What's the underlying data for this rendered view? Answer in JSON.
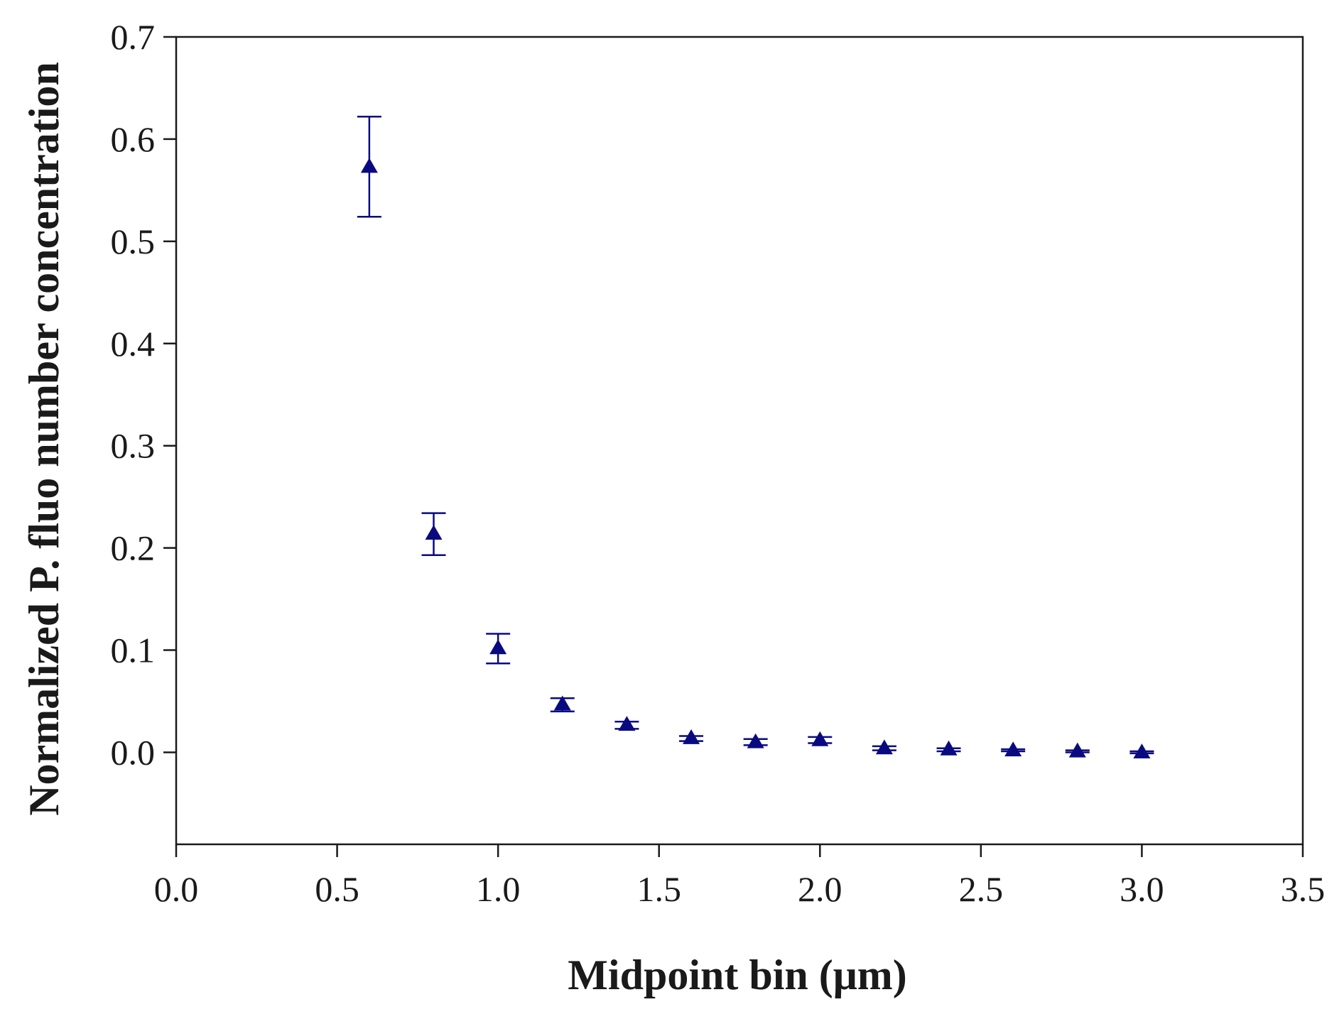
{
  "chart_data": {
    "type": "scatter",
    "xlabel": "Midpoint bin (μm)",
    "ylabel": "Normalized P. fluo number concentration",
    "xlim": [
      0.0,
      3.5
    ],
    "ylim": [
      -0.09,
      0.7
    ],
    "x_ticks": [
      "0.0",
      "0.5",
      "1.0",
      "1.5",
      "2.0",
      "2.5",
      "3.0",
      "3.5"
    ],
    "y_ticks": [
      "0.0",
      "0.1",
      "0.2",
      "0.3",
      "0.4",
      "0.5",
      "0.6",
      "0.7"
    ],
    "grid": false,
    "marker": "triangle",
    "marker_color": "#0a0a80",
    "series": [
      {
        "x": [
          0.6,
          0.8,
          1.0,
          1.2,
          1.4,
          1.6,
          1.8,
          2.0,
          2.2,
          2.4,
          2.6,
          2.8,
          3.0
        ],
        "y": [
          0.573,
          0.214,
          0.102,
          0.047,
          0.027,
          0.014,
          0.01,
          0.012,
          0.004,
          0.003,
          0.002,
          0.001,
          0.0
        ],
        "err_low": [
          0.524,
          0.193,
          0.087,
          0.04,
          0.023,
          0.011,
          0.007,
          0.009,
          0.002,
          0.001,
          0.001,
          0.0,
          -0.001
        ],
        "err_high": [
          0.622,
          0.234,
          0.116,
          0.053,
          0.03,
          0.016,
          0.013,
          0.015,
          0.006,
          0.004,
          0.003,
          0.002,
          0.001
        ]
      }
    ]
  }
}
